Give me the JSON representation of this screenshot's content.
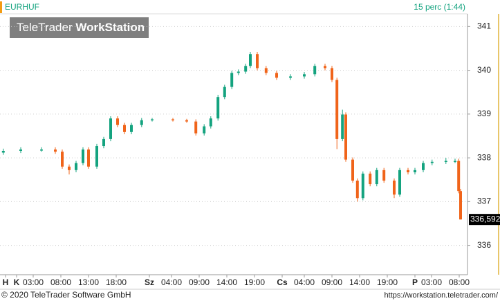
{
  "chart_data": {
    "type": "candlestick",
    "symbol": "EURHUF",
    "interval": "15 perc (1:44)",
    "watermark": [
      "TeleTrader",
      "WorkStation"
    ],
    "copyright": "© 2020 TeleTrader Software GmbH",
    "url": "https://workstation.teletrader.com/",
    "last_label": "336,592",
    "up_color": "#14a37f",
    "down_color": "#f0641a",
    "grid": true,
    "xlim": [
      -3,
      81.5
    ],
    "ylim": [
      335.33,
      341.29
    ],
    "yticks": [
      336,
      337,
      338,
      339,
      340,
      341
    ],
    "xticks": [
      {
        "value": -2,
        "label": "H"
      },
      {
        "value": 0,
        "label": "K"
      },
      {
        "value": 3,
        "label": "03:00"
      },
      {
        "value": 8,
        "label": "08:00"
      },
      {
        "value": 13,
        "label": "13:00"
      },
      {
        "value": 18,
        "label": "18:00"
      },
      {
        "value": 24,
        "label": "Sz"
      },
      {
        "value": 28,
        "label": "04:00"
      },
      {
        "value": 33,
        "label": "09:00"
      },
      {
        "value": 38,
        "label": "14:00"
      },
      {
        "value": 43,
        "label": "19:00"
      },
      {
        "value": 48,
        "label": "Cs"
      },
      {
        "value": 52,
        "label": "04:00"
      },
      {
        "value": 57,
        "label": "09:00"
      },
      {
        "value": 62,
        "label": "14:00"
      },
      {
        "value": 67,
        "label": "19:00"
      },
      {
        "value": 72,
        "label": "P"
      },
      {
        "value": 75,
        "label": "03:00"
      },
      {
        "value": 80,
        "label": "08:00"
      }
    ],
    "x": [
      -2.4,
      0.75,
      4.5,
      7,
      8.25,
      9.5,
      10.75,
      12,
      13,
      14.5,
      15.75,
      17,
      18.25,
      19.5,
      20.75,
      22.6,
      24.5,
      28.25,
      30.75,
      32.4,
      33.9,
      35.1,
      36.4,
      37.6,
      38.9,
      40.1,
      41.4,
      42.25,
      43.5,
      45.1,
      47,
      49.5,
      52,
      53.9,
      55.75,
      57,
      57.9,
      58.9,
      59.5,
      60.75,
      61.6,
      62.6,
      63.9,
      65.1,
      66.4,
      68.25,
      69.25,
      70.75,
      72,
      73.5,
      75.1,
      77.6,
      79.25,
      79.9,
      80.25
    ],
    "open": [
      338.12,
      338.16,
      338.19,
      338.19,
      338.14,
      337.8,
      337.72,
      337.88,
      338.19,
      337.8,
      338.27,
      338.43,
      338.9,
      338.75,
      338.59,
      338.75,
      338.86,
      338.88,
      338.86,
      338.83,
      338.56,
      338.72,
      338.9,
      339.39,
      339.62,
      339.94,
      339.97,
      340.1,
      340.37,
      340.05,
      339.94,
      339.83,
      339.86,
      339.91,
      340.1,
      340.05,
      339.78,
      338.43,
      338.99,
      337.96,
      337.48,
      337.08,
      337.64,
      337.4,
      337.72,
      337.48,
      337.16,
      337.72,
      337.67,
      337.72,
      337.88,
      337.91,
      337.93,
      337.93,
      337.24
    ],
    "high": [
      338.21,
      338.24,
      338.24,
      338.24,
      338.19,
      337.85,
      337.93,
      338.24,
      338.24,
      338.32,
      338.48,
      338.95,
      338.95,
      338.8,
      338.8,
      338.91,
      338.91,
      338.91,
      338.89,
      338.88,
      338.77,
      338.95,
      339.44,
      339.67,
      339.99,
      340.02,
      340.15,
      340.42,
      340.42,
      340.1,
      339.99,
      339.91,
      339.96,
      340.15,
      340.15,
      340.1,
      339.83,
      339.1,
      339.04,
      338.01,
      337.53,
      337.69,
      337.69,
      337.77,
      337.77,
      337.53,
      337.77,
      337.77,
      337.77,
      337.93,
      337.96,
      338.0,
      337.98,
      337.98,
      337.29
    ],
    "low": [
      338.07,
      338.11,
      338.14,
      338.09,
      337.75,
      337.62,
      337.67,
      337.83,
      337.75,
      337.75,
      338.22,
      338.38,
      338.7,
      338.54,
      338.54,
      338.7,
      338.83,
      338.83,
      338.8,
      338.51,
      338.51,
      338.67,
      338.85,
      339.34,
      339.57,
      339.89,
      339.92,
      340.05,
      340.0,
      339.89,
      339.78,
      339.78,
      339.81,
      339.86,
      340.0,
      339.73,
      338.2,
      338.38,
      337.91,
      337.43,
      337.0,
      337.03,
      337.35,
      337.35,
      337.43,
      337.08,
      337.11,
      337.62,
      337.62,
      337.67,
      337.83,
      337.86,
      337.88,
      337.19,
      336.59
    ],
    "close": [
      338.16,
      338.19,
      338.19,
      338.14,
      337.8,
      337.72,
      337.88,
      338.19,
      337.8,
      338.27,
      338.43,
      338.9,
      338.75,
      338.59,
      338.75,
      338.86,
      338.88,
      338.86,
      338.83,
      338.56,
      338.72,
      338.9,
      339.39,
      339.62,
      339.94,
      339.97,
      340.1,
      340.37,
      340.05,
      339.94,
      339.83,
      339.86,
      339.91,
      340.1,
      340.05,
      339.78,
      338.43,
      338.99,
      337.96,
      337.48,
      337.08,
      337.64,
      337.4,
      337.72,
      337.48,
      337.16,
      337.72,
      337.67,
      337.72,
      337.88,
      337.91,
      337.93,
      337.93,
      337.24,
      336.592
    ]
  }
}
